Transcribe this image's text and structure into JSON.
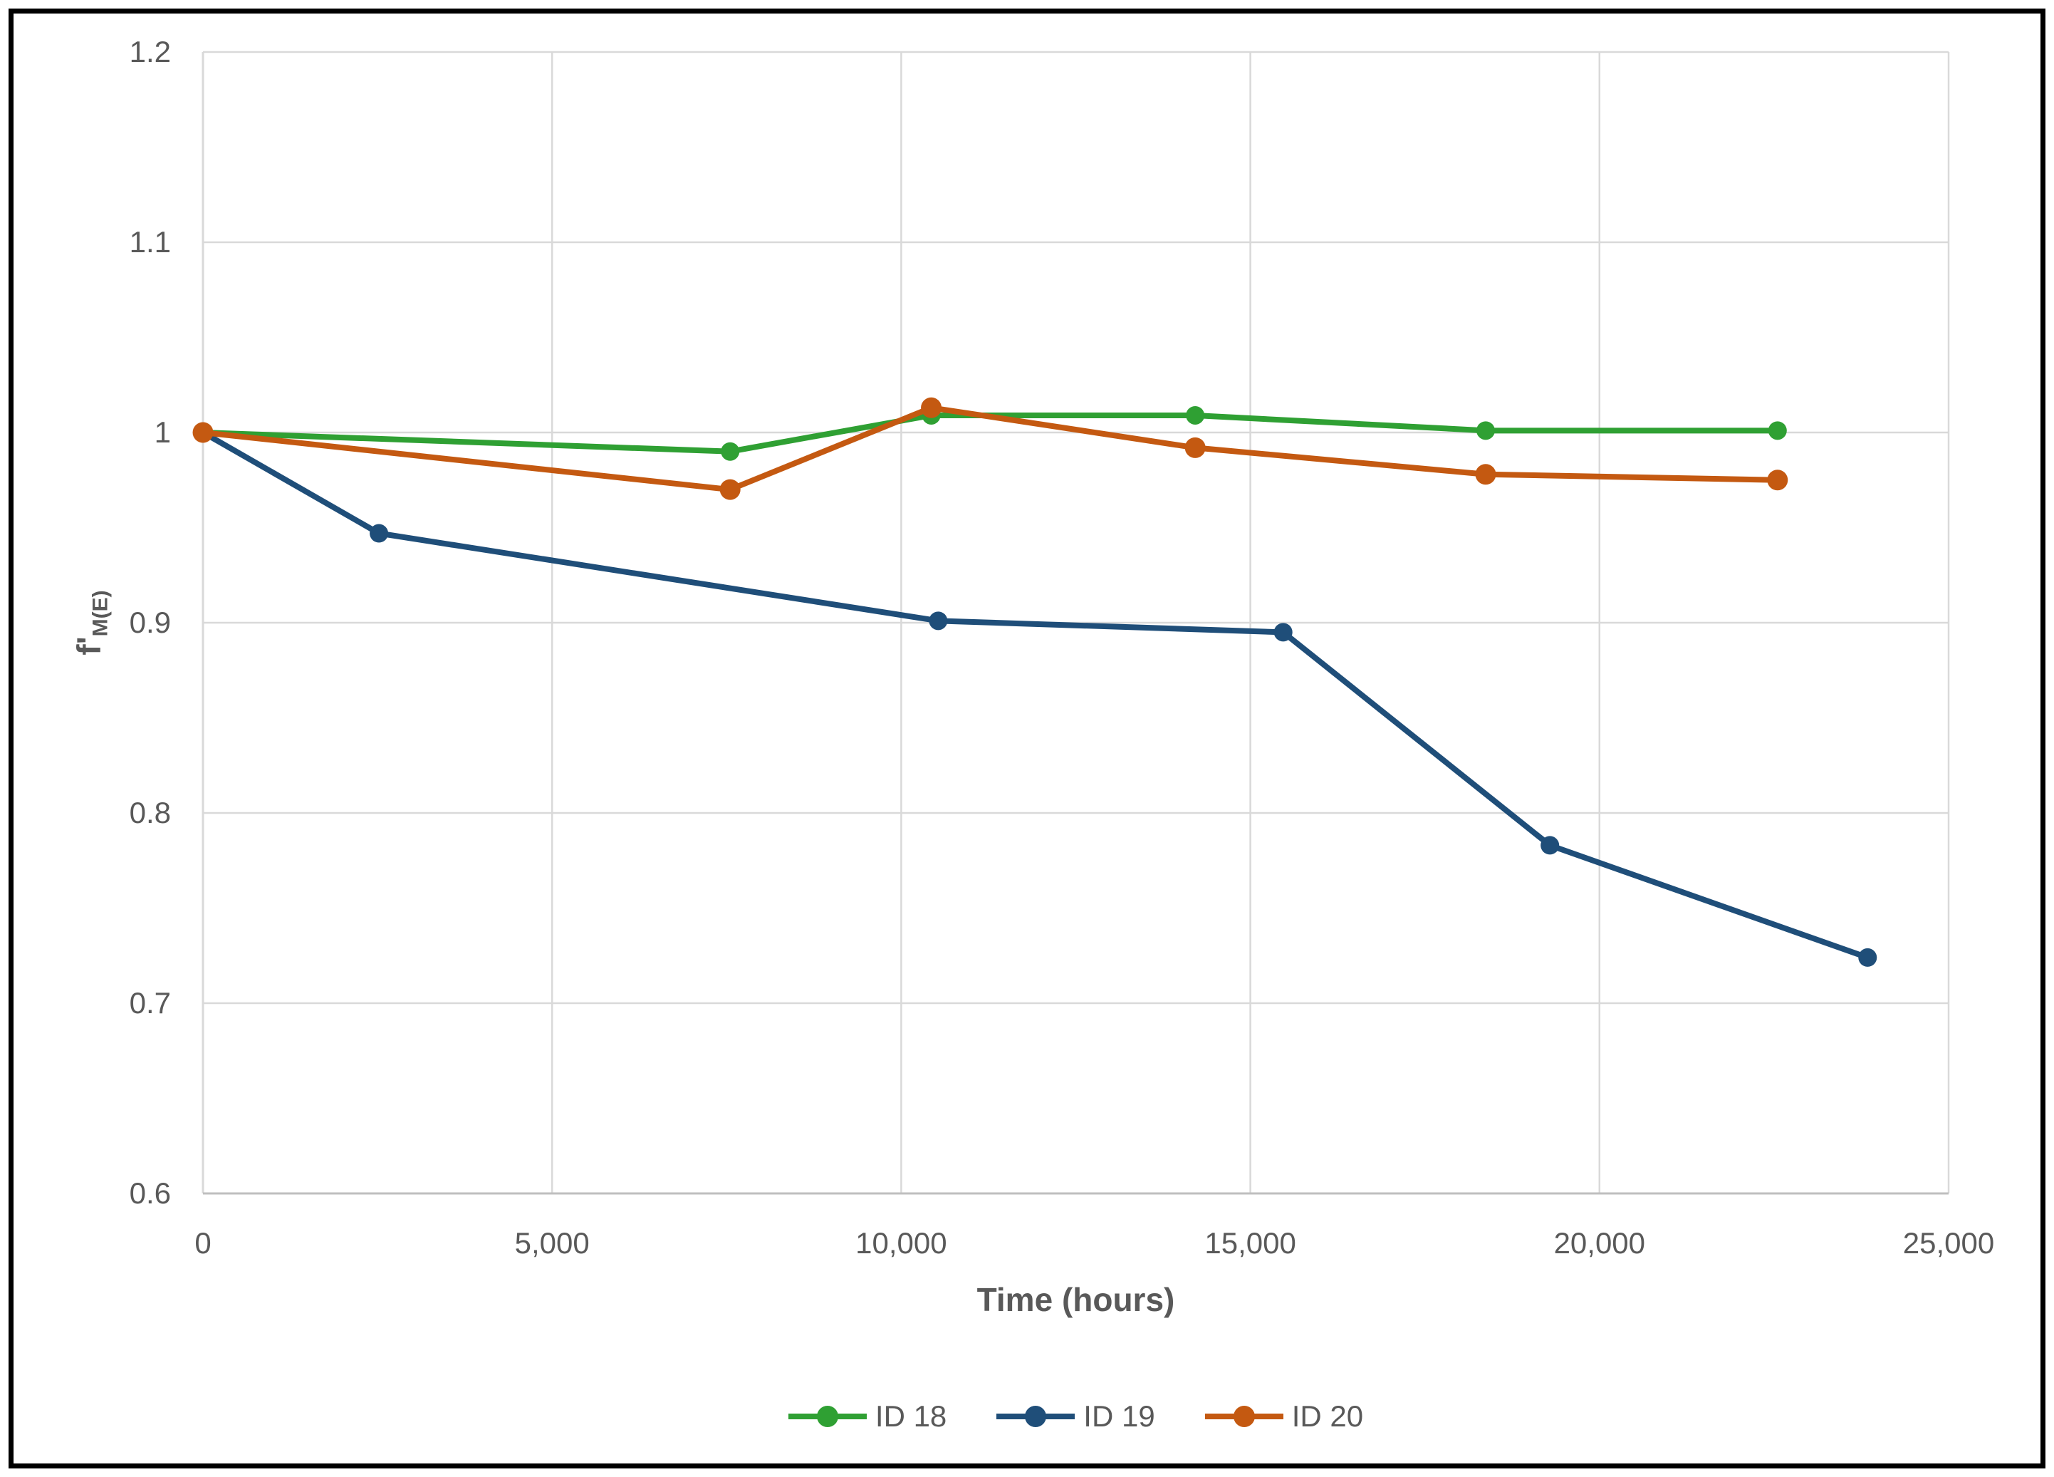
{
  "page": {
    "background": "#FFFFFF"
  },
  "colors": {
    "grid": "#D9D9D9",
    "axis_line": "#BFBFBF",
    "text": "#595959",
    "frame": "#000000"
  },
  "chart_data": {
    "type": "line",
    "title": "",
    "xlabel": "Time (hours)",
    "ylabel": "f'M(E)",
    "ylabel_main": "f'",
    "ylabel_sub": "M(E)",
    "xlim": [
      0,
      25000
    ],
    "ylim": [
      0.6,
      1.2
    ],
    "x_ticks": [
      0,
      5000,
      10000,
      15000,
      20000,
      25000
    ],
    "x_tick_labels": [
      "0",
      "5,000",
      "10,000",
      "15,000",
      "20,000",
      "25,000"
    ],
    "y_ticks": [
      0.6,
      0.7,
      0.8,
      0.9,
      1,
      1.1,
      1.2
    ],
    "y_tick_labels": [
      "0.6",
      "0.7",
      "0.8",
      "0.9",
      "1",
      "1.1",
      "1.2"
    ],
    "grid": true,
    "legend_position": "bottom",
    "series": [
      {
        "name": "ID 18",
        "color": "#2FA033",
        "x": [
          0,
          7550,
          10430,
          14210,
          18370,
          22550
        ],
        "y": [
          1.0,
          0.99,
          1.009,
          1.009,
          1.001,
          1.001
        ]
      },
      {
        "name": "ID 19",
        "color": "#1F4E79",
        "x": [
          0,
          2520,
          10530,
          15470,
          19290,
          23840
        ],
        "y": [
          1.0,
          0.947,
          0.901,
          0.895,
          0.783,
          0.724
        ]
      },
      {
        "name": "ID 20",
        "color": "#C45911",
        "x": [
          0,
          7550,
          10430,
          14210,
          18370,
          22550
        ],
        "y": [
          1.0,
          0.97,
          1.013,
          0.992,
          0.978,
          0.975
        ]
      }
    ]
  }
}
